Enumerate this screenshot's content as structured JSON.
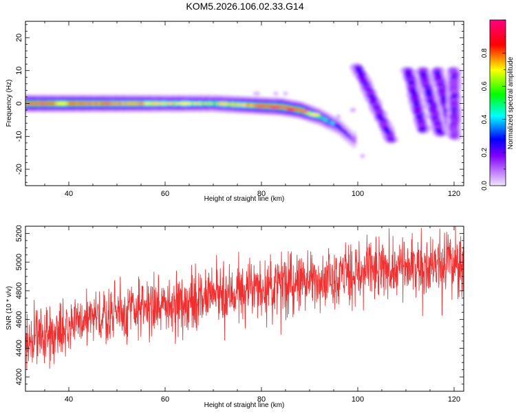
{
  "title": "KOM5.2026.106.02.33.G14",
  "chart_data": [
    {
      "type": "heatmap",
      "xlabel": "Height of straight line (km)",
      "ylabel": "Frequency (Hz)",
      "xlim": [
        31,
        122
      ],
      "ylim": [
        -25,
        25
      ],
      "xticks": [
        40,
        60,
        80,
        100,
        120
      ],
      "yticks": [
        -20,
        -10,
        0,
        10,
        20
      ],
      "grid": false,
      "colorbar": {
        "label": "Normalized spectral amplitude",
        "range": [
          0,
          1
        ],
        "ticks": [
          "0.0",
          "0.2",
          "0.4",
          "0.6",
          "0.8"
        ],
        "colors": [
          "#f0e6ff",
          "#8000ff",
          "#0000ff",
          "#00ffff",
          "#00ff00",
          "#ffff00",
          "#ff0000",
          "#ff0080"
        ]
      },
      "features": [
        {
          "name": "main trace",
          "points": [
            [
              31,
              0
            ],
            [
              50,
              0
            ],
            [
              70,
              0
            ],
            [
              84,
              -1
            ],
            [
              88,
              -2
            ],
            [
              92,
              -4
            ],
            [
              96,
              -7
            ],
            [
              99,
              -11
            ]
          ],
          "amplitude": [
            0.9,
            0.8,
            0.6,
            0.95,
            0.85,
            0.5,
            0.3,
            0.15
          ]
        },
        {
          "name": "stripe 1",
          "points": [
            [
              100,
              11
            ],
            [
              107,
              -11
            ]
          ],
          "amplitude": 0.18
        },
        {
          "name": "stripe 2",
          "points": [
            [
              110.5,
              10
            ],
            [
              113.5,
              -8
            ]
          ],
          "amplitude": 0.18
        },
        {
          "name": "stripe 3",
          "points": [
            [
              113.5,
              10
            ],
            [
              117,
              -9
            ]
          ],
          "amplitude": 0.18
        },
        {
          "name": "stripe 4",
          "points": [
            [
              116.5,
              10
            ],
            [
              119.5,
              -8
            ]
          ],
          "amplitude": 0.18
        },
        {
          "name": "stripe 5",
          "points": [
            [
              120,
              10
            ],
            [
              120,
              -10
            ]
          ],
          "amplitude": 0.15
        }
      ]
    },
    {
      "type": "line",
      "xlabel": "Height of straight line (km)",
      "ylabel": "SNR (10 * v/v)",
      "xlim": [
        31,
        122
      ],
      "ylim": [
        4100,
        5250
      ],
      "xticks": [
        40,
        60,
        80,
        100,
        120
      ],
      "yticks": [
        4200,
        4400,
        4600,
        4800,
        5000,
        5200
      ],
      "grid": false,
      "color": "#f03030",
      "trend": {
        "x": [
          31,
          40,
          50,
          60,
          70,
          80,
          90,
          100,
          110,
          122
        ],
        "y": [
          4430,
          4570,
          4650,
          4700,
          4760,
          4820,
          4880,
          4920,
          4960,
          5000
        ]
      },
      "noise_amplitude": 110,
      "samples": 1600
    }
  ]
}
